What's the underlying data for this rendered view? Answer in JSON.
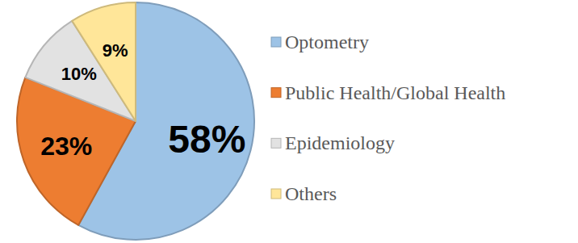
{
  "chart_data": {
    "type": "pie",
    "categories": [
      "Optometry",
      "Public Health/Global Health",
      "Epidemiology",
      "Others"
    ],
    "values": [
      58,
      23,
      10,
      9
    ],
    "value_labels": [
      "58%",
      "23%",
      "10%",
      "9%"
    ],
    "colors": [
      "#9dc3e6",
      "#ed7d31",
      "#e2e2e2",
      "#ffe699"
    ],
    "data_labels": true,
    "legend": "right"
  }
}
